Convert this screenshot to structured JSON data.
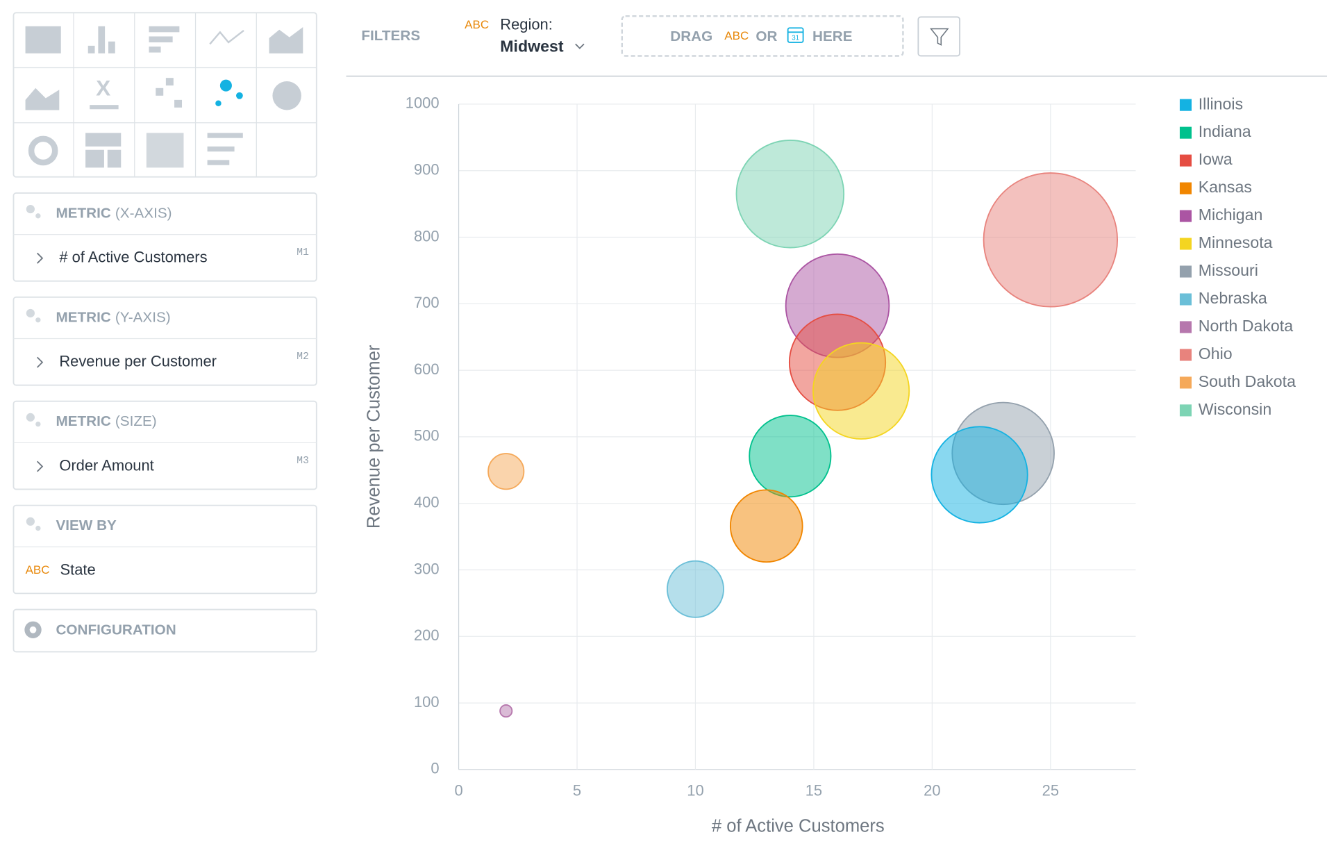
{
  "sidebar": {
    "sections": [
      {
        "title": "METRIC",
        "subtitle": "(X-AXIS)",
        "item": "# of Active Customers",
        "tag": "M1"
      },
      {
        "title": "METRIC",
        "subtitle": "(Y-AXIS)",
        "item": "Revenue per Customer",
        "tag": "M2"
      },
      {
        "title": "METRIC",
        "subtitle": "(SIZE)",
        "item": "Order Amount",
        "tag": "M3"
      },
      {
        "title": "VIEW BY",
        "item_type": "ABC",
        "item": "State"
      }
    ],
    "configuration": "CONFIGURATION"
  },
  "filters": {
    "label": "FILTERS",
    "attribute_type": "ABC",
    "attribute": "Region:",
    "value": "Midwest",
    "drop_zone": {
      "drag": "DRAG",
      "type": "ABC",
      "or": "OR",
      "calendar_day": "31",
      "here": "HERE"
    }
  },
  "chart_data": {
    "type": "bubble",
    "x_label": "# of Active Customers",
    "y_label": "Revenue per Customer",
    "xlim": [
      0,
      28.6
    ],
    "xticks": [
      0,
      5,
      10,
      15,
      20,
      25
    ],
    "ylim": [
      0,
      1000
    ],
    "yticks": [
      0,
      100,
      200,
      300,
      400,
      500,
      600,
      700,
      800,
      900,
      1000
    ],
    "grid": true,
    "legend": "right",
    "series": [
      {
        "name": "Illinois",
        "color": "#14b2e2",
        "x": [
          22
        ],
        "values": [
          443
        ],
        "sizes": [
          32
        ]
      },
      {
        "name": "Indiana",
        "color": "#00c18d",
        "x": [
          14
        ],
        "values": [
          471
        ],
        "sizes": [
          23
        ]
      },
      {
        "name": "Iowa",
        "color": "#e54d42",
        "x": [
          16
        ],
        "values": [
          612
        ],
        "sizes": [
          32
        ]
      },
      {
        "name": "Kansas",
        "color": "#f18600",
        "x": [
          13
        ],
        "values": [
          366
        ],
        "sizes": [
          18
        ]
      },
      {
        "name": "Michigan",
        "color": "#ab55a3",
        "x": [
          16
        ],
        "values": [
          697
        ],
        "sizes": [
          37
        ]
      },
      {
        "name": "Minnesota",
        "color": "#f4d521",
        "x": [
          17
        ],
        "values": [
          569
        ],
        "sizes": [
          32
        ]
      },
      {
        "name": "Missouri",
        "color": "#94a1ad",
        "x": [
          23
        ],
        "values": [
          475
        ],
        "sizes": [
          36
        ]
      },
      {
        "name": "Nebraska",
        "color": "#6bbfd8",
        "x": [
          10
        ],
        "values": [
          271
        ],
        "sizes": [
          11
        ]
      },
      {
        "name": "North Dakota",
        "color": "#b677ad",
        "x": [
          2
        ],
        "values": [
          88
        ],
        "sizes": [
          0.5
        ]
      },
      {
        "name": "Ohio",
        "color": "#e8837d",
        "x": [
          25
        ],
        "values": [
          796
        ],
        "sizes": [
          62
        ]
      },
      {
        "name": "South Dakota",
        "color": "#f5a95a",
        "x": [
          2
        ],
        "values": [
          448
        ],
        "sizes": [
          4.4
        ]
      },
      {
        "name": "Wisconsin",
        "color": "#7dd4b4",
        "x": [
          14
        ],
        "values": [
          865
        ],
        "sizes": [
          40
        ]
      }
    ]
  }
}
